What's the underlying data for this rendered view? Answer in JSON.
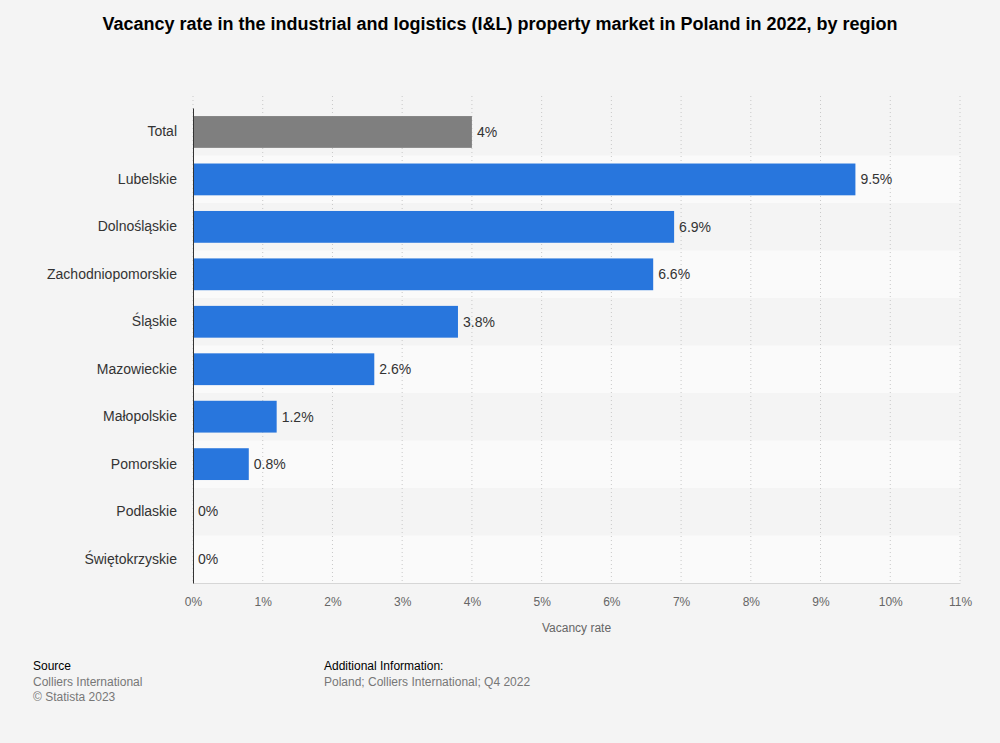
{
  "chart_data": {
    "type": "bar",
    "orientation": "horizontal",
    "title": "Vacancy rate in the industrial and logistics (I&L) property market in Poland in 2022, by region",
    "x_label": "Vacancy rate",
    "categories": [
      "Total",
      "Lubelskie",
      "Dolnośląskie",
      "Zachodniopomorskie",
      "Śląskie",
      "Mazowieckie",
      "Małopolskie",
      "Pomorskie",
      "Podlaskie",
      "Świętokrzyskie"
    ],
    "values": [
      4,
      9.5,
      6.9,
      6.6,
      3.8,
      2.6,
      1.2,
      0.8,
      0,
      0
    ],
    "value_labels": [
      "4%",
      "9.5%",
      "6.9%",
      "6.6%",
      "3.8%",
      "2.6%",
      "1.2%",
      "0.8%",
      "0%",
      "0%"
    ],
    "colors": [
      "#7f7f7f",
      "#2876dd",
      "#2876dd",
      "#2876dd",
      "#2876dd",
      "#2876dd",
      "#2876dd",
      "#2876dd",
      "#2876dd",
      "#2876dd"
    ],
    "xlim": [
      0,
      11
    ],
    "xticks": [
      {
        "value": 0,
        "label": "0%"
      },
      {
        "value": 1,
        "label": "1%"
      },
      {
        "value": 2,
        "label": "2%"
      },
      {
        "value": 3,
        "label": "3%"
      },
      {
        "value": 4,
        "label": "4%"
      },
      {
        "value": 5,
        "label": "5%"
      },
      {
        "value": 6,
        "label": "6%"
      },
      {
        "value": 7,
        "label": "7%"
      },
      {
        "value": 8,
        "label": "8%"
      },
      {
        "value": 9,
        "label": "9%"
      },
      {
        "value": 10,
        "label": "10%"
      },
      {
        "value": 11,
        "label": "11%"
      }
    ],
    "grid": true,
    "data_labels": true,
    "source": {
      "heading": "Source",
      "lines": [
        "Colliers International",
        "© Statista 2023"
      ]
    },
    "additional_info": {
      "heading": "Additional Information:",
      "lines": [
        "Poland; Colliers International; Q4 2022"
      ]
    }
  }
}
